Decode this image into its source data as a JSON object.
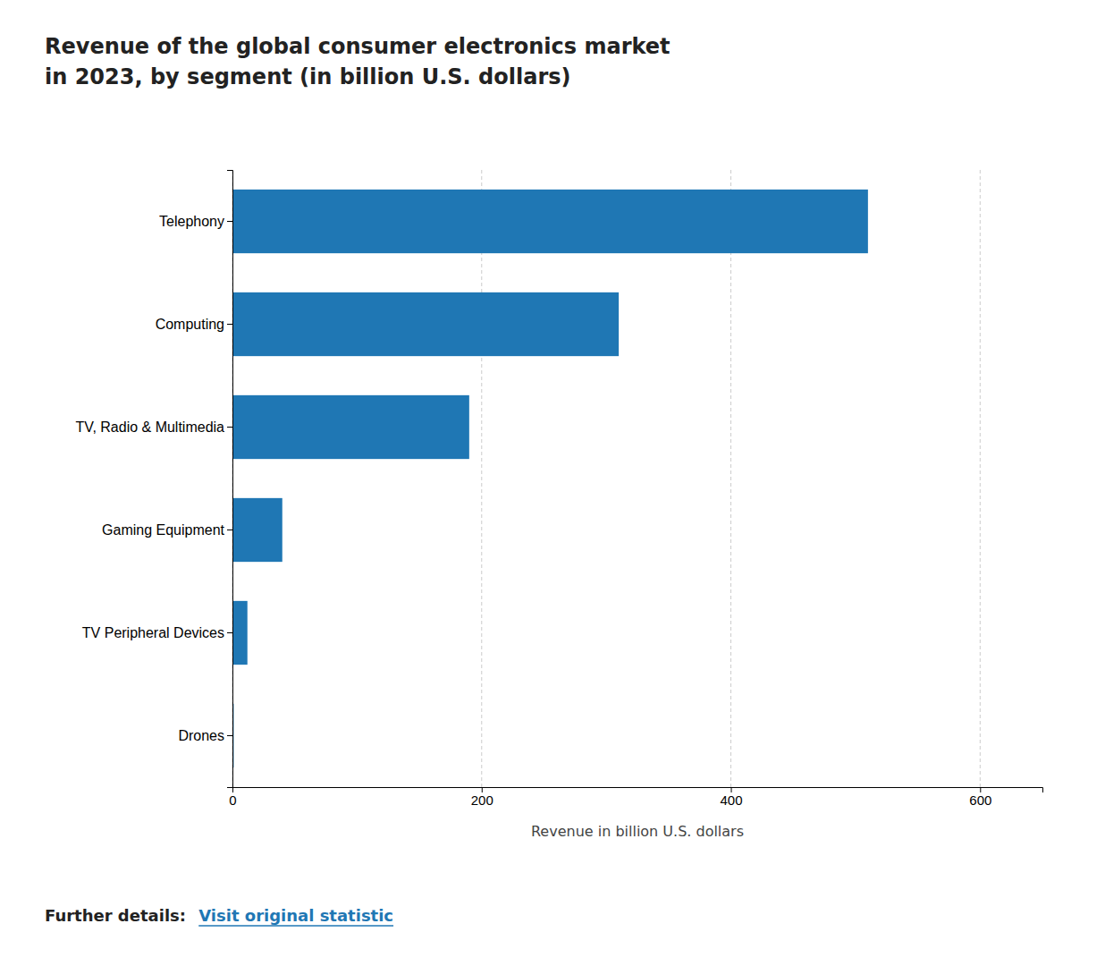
{
  "chart_data": {
    "type": "bar",
    "orientation": "horizontal",
    "title": "Revenue of the global consumer electronics market\nin 2023, by segment (in billion U.S. dollars)",
    "categories": [
      "Telephony",
      "Computing",
      "TV, Radio & Multimedia",
      "Gaming Equipment",
      "TV Peripheral Devices",
      "Drones"
    ],
    "values": [
      510,
      310,
      190,
      40,
      12,
      1
    ],
    "xlabel": "Revenue in billion U.S. dollars",
    "xlim": [
      0,
      650
    ],
    "xticks": [
      0,
      200,
      400,
      600
    ],
    "grid": true,
    "annotations": [
      "Further details: ",
      "Visit original statistic"
    ]
  }
}
